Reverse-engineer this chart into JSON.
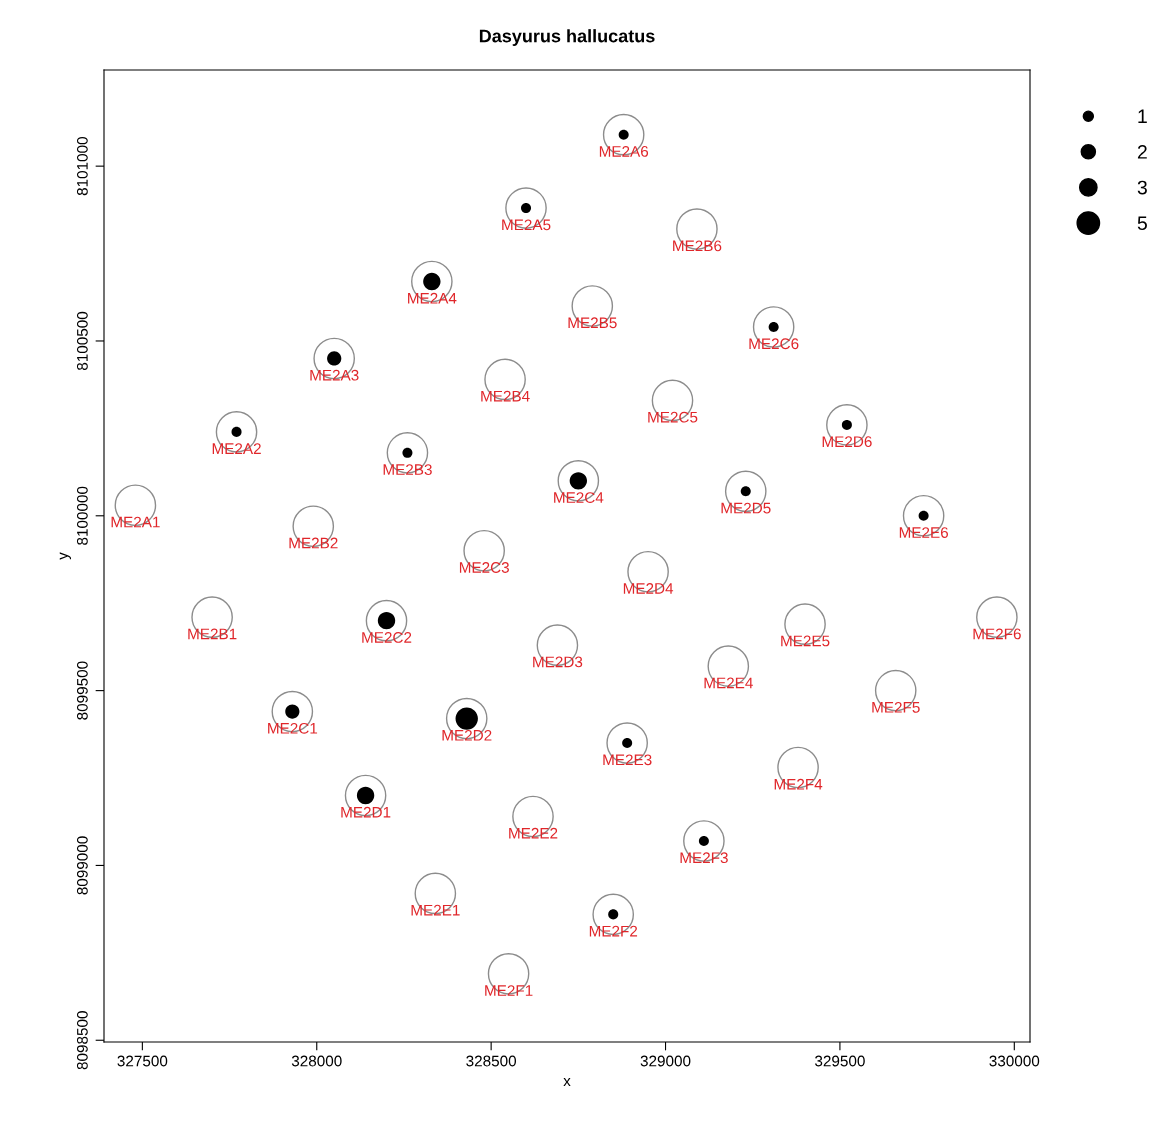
{
  "chart_data": {
    "type": "bubble",
    "title": "Dasyurus hallucatus",
    "xlabel": "x",
    "ylabel": "y",
    "xlim": [
      327390,
      330045
    ],
    "ylim": [
      8098495,
      8101275
    ],
    "xticks": [
      327500,
      328000,
      328500,
      329000,
      329500,
      330000
    ],
    "yticks": [
      8098500,
      8099000,
      8099500,
      8100000,
      8100500,
      8101000
    ],
    "grid": false,
    "size_legend": [
      1,
      2,
      3,
      5
    ],
    "series": [
      {
        "type": "scatter",
        "marker": "circle",
        "color": "#8c8c8c",
        "x": [
          327480,
          327770,
          328050,
          328330,
          328600,
          328880,
          327700,
          327990,
          328260,
          328540,
          328790,
          329090,
          327930,
          328200,
          328480,
          328750,
          329020,
          329310,
          328140,
          328430,
          328690,
          328950,
          329230,
          329520,
          328340,
          328620,
          328890,
          329180,
          329400,
          329740,
          328550,
          328850,
          329110,
          329380,
          329660,
          329950
        ],
        "values": [
          8100030,
          8100240,
          8100450,
          8100670,
          8100880,
          8101090,
          8099710,
          8099970,
          8100180,
          8100390,
          8100600,
          8100820,
          8099440,
          8099700,
          8099900,
          8100100,
          8100330,
          8100540,
          8099200,
          8099420,
          8099630,
          8099840,
          8100070,
          8100260,
          8098920,
          8099140,
          8099350,
          8099570,
          8099690,
          8100000,
          8098690,
          8098860,
          8099070,
          8099280,
          8099500,
          8099710
        ],
        "value_labels": [
          "ME2A1",
          "ME2A2",
          "ME2A3",
          "ME2A4",
          "ME2A5",
          "ME2A6",
          "ME2B1",
          "ME2B2",
          "ME2B3",
          "ME2B4",
          "ME2B5",
          "ME2B6",
          "ME2C1",
          "ME2C2",
          "ME2C3",
          "ME2C4",
          "ME2C5",
          "ME2C6",
          "ME2D1",
          "ME2D2",
          "ME2D3",
          "ME2D4",
          "ME2D5",
          "ME2D6",
          "ME2E1",
          "ME2E2",
          "ME2E3",
          "ME2E4",
          "ME2E5",
          "ME2E6",
          "ME2F1",
          "ME2F2",
          "ME2F3",
          "ME2F4",
          "ME2F5",
          "ME2F6"
        ]
      },
      {
        "color": "#000000",
        "x": [
          327770,
          328050,
          328330,
          328600,
          328880,
          328260,
          327930,
          328200,
          328750,
          329310,
          328140,
          328430,
          329230,
          329520,
          328890,
          329740,
          328850,
          329110
        ],
        "values": [
          8100240,
          8100450,
          8100670,
          8100880,
          8101090,
          8100180,
          8099440,
          8099700,
          8100100,
          8100540,
          8099200,
          8099420,
          8100070,
          8100260,
          8099350,
          8100000,
          8098860,
          8099070
        ],
        "sizes": [
          1,
          2,
          3,
          1,
          1,
          1,
          2,
          3,
          3,
          1,
          3,
          5,
          1,
          1,
          1,
          1,
          1,
          1
        ]
      }
    ]
  }
}
